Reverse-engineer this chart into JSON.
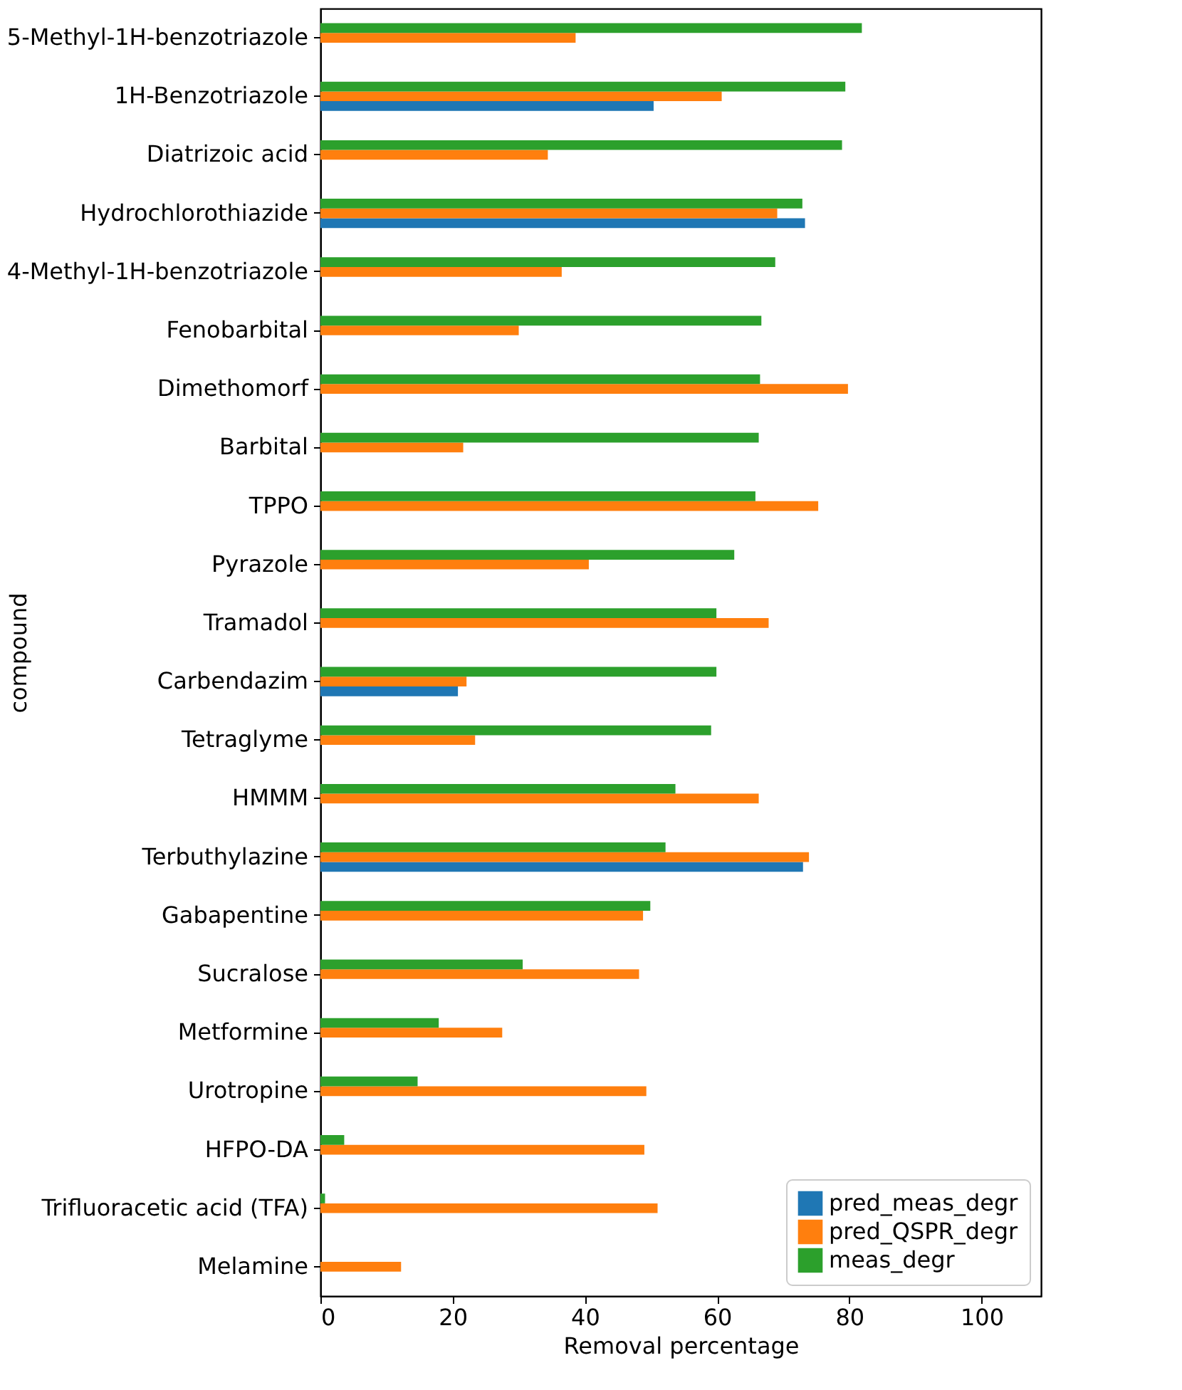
{
  "chart_data": {
    "type": "bar",
    "orientation": "horizontal",
    "xlabel": "Removal percentage",
    "ylabel": "compound",
    "categories": [
      "5-Methyl-1H-benzotriazole",
      "1H-Benzotriazole",
      "Diatrizoic acid",
      "Hydrochlorothiazide",
      "4-Methyl-1H-benzotriazole",
      "Fenobarbital",
      "Dimethomorf",
      "Barbital",
      "TPPO",
      "Pyrazole",
      "Tramadol",
      "Carbendazim",
      "Tetraglyme",
      "HMMM",
      "Terbuthylazine",
      "Gabapentine",
      "Sucralose",
      "Metformine",
      "Urotropine",
      "HFPO-DA",
      "Trifluoracetic acid (TFA)",
      "Melamine"
    ],
    "series": [
      {
        "name": "pred_meas_degr",
        "color": "#1f77b4",
        "values": [
          null,
          50.4,
          null,
          73.3,
          null,
          null,
          null,
          null,
          null,
          null,
          null,
          20.8,
          null,
          null,
          73.0,
          null,
          null,
          null,
          null,
          null,
          null,
          null
        ]
      },
      {
        "name": "pred_QSPR_degr",
        "color": "#ff7f0e",
        "values": [
          38.6,
          60.7,
          34.4,
          69.1,
          36.5,
          30.0,
          79.8,
          21.6,
          75.3,
          40.6,
          67.8,
          22.1,
          23.4,
          66.3,
          73.9,
          48.8,
          48.2,
          27.5,
          49.3,
          49.0,
          51.0,
          12.2
        ]
      },
      {
        "name": "meas_degr",
        "color": "#2ca02c",
        "values": [
          81.9,
          79.4,
          78.9,
          72.9,
          68.8,
          66.7,
          66.5,
          66.3,
          65.8,
          62.6,
          59.9,
          59.9,
          59.1,
          53.7,
          52.2,
          49.9,
          30.6,
          17.9,
          14.7,
          3.6,
          0.7,
          null
        ]
      }
    ],
    "xlim": [
      0,
      109
    ],
    "xticks": [
      0,
      20,
      40,
      60,
      80,
      100
    ],
    "grid": false,
    "legend": "bottom right"
  }
}
